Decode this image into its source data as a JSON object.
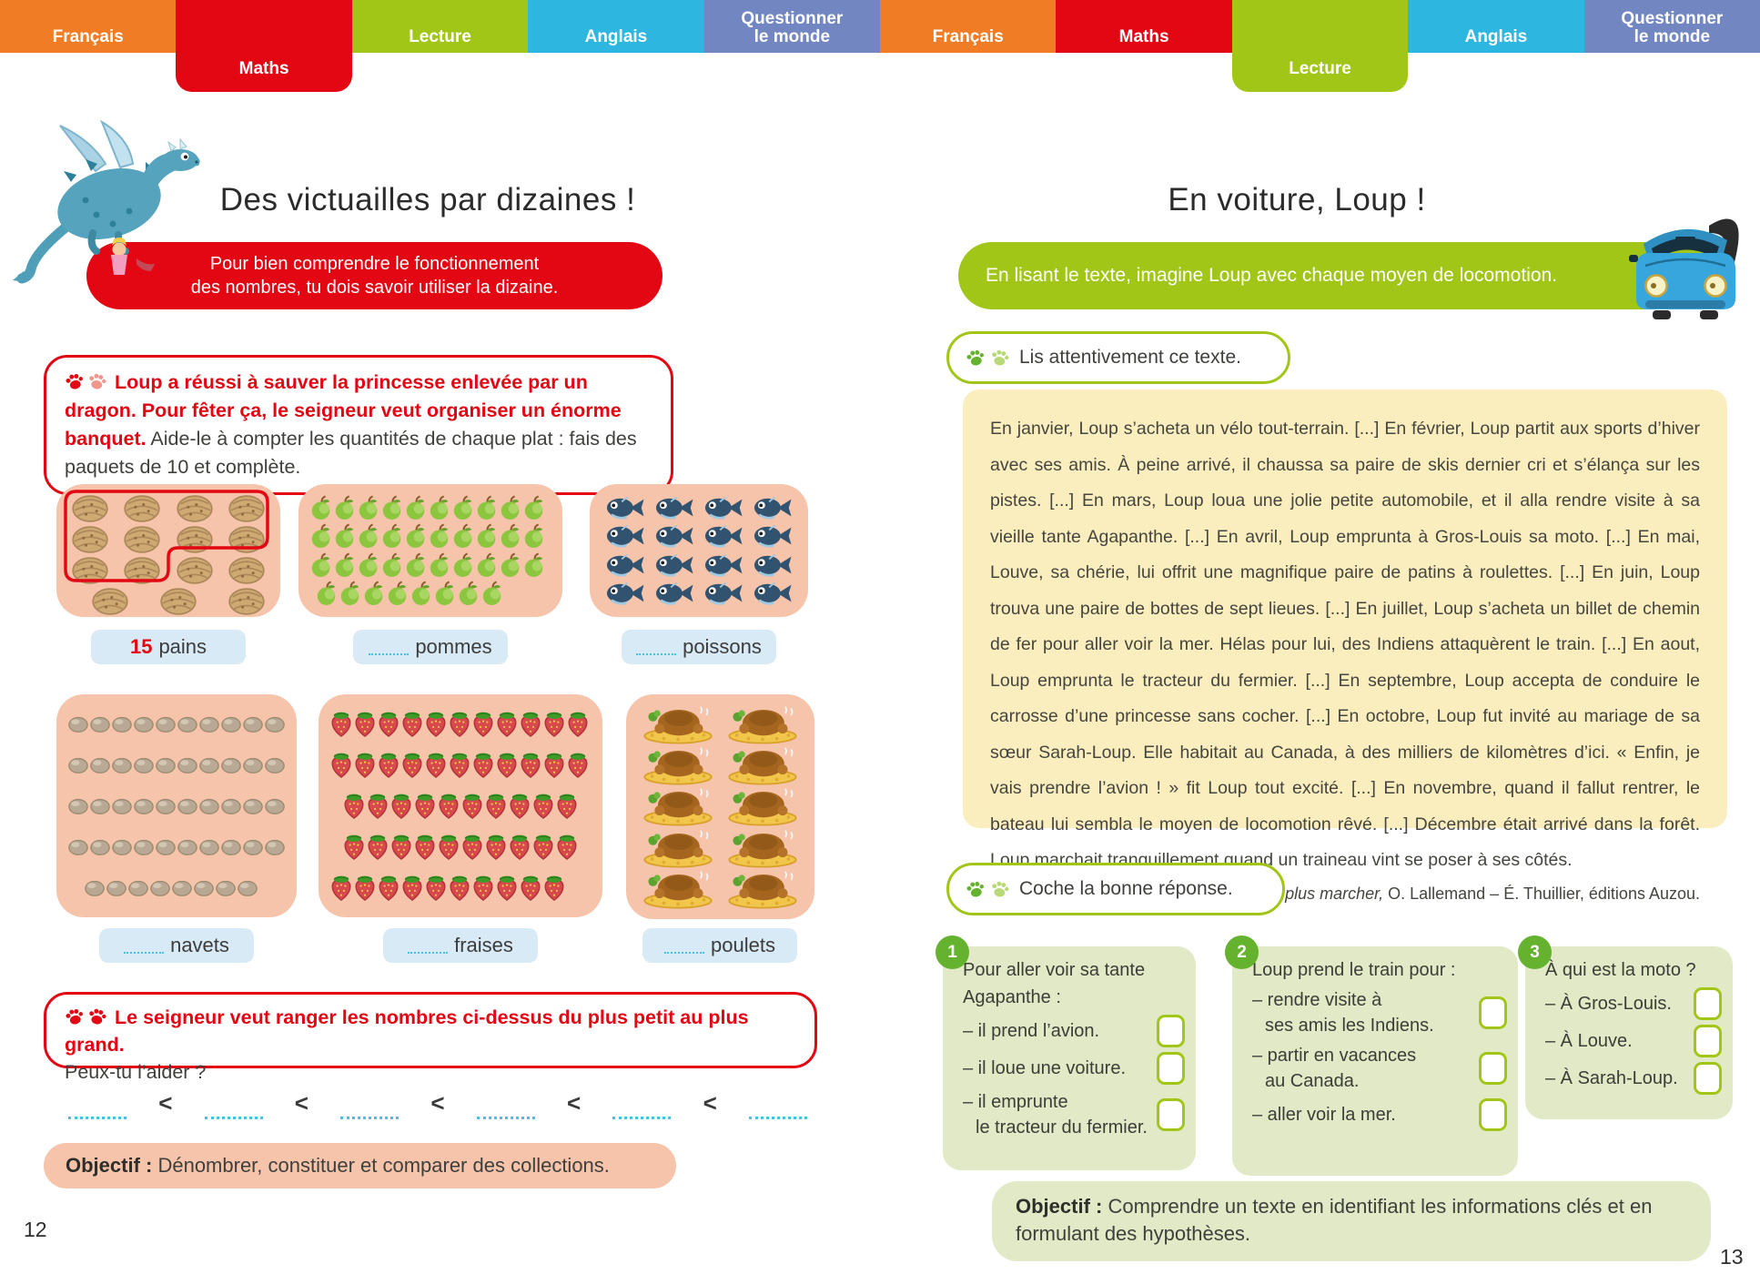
{
  "palette": {
    "orange": "#f07d26",
    "red": "#e30613",
    "green": "#a2c617",
    "cyan": "#2cb6e0",
    "blue": "#7287c2",
    "pink_box": "#f6c4ab",
    "label_blue": "#d8eaf6",
    "yellow_box": "#fbeebe",
    "card_green": "#e1e9c6",
    "circle_green": "#65b22e",
    "dotted_cyan": "#49bfe8"
  },
  "left_page": {
    "tabs": [
      {
        "label": "Français",
        "color": "#f07d26",
        "active": false
      },
      {
        "label": "Maths",
        "color": "#e30613",
        "active": true
      },
      {
        "label": "Lecture",
        "color": "#a2c617",
        "active": false
      },
      {
        "label": "Anglais",
        "color": "#2cb6e0",
        "active": false
      },
      {
        "label": "Questionner\nle monde",
        "color": "#7287c2",
        "active": false
      }
    ],
    "title": "Des victuailles par dizaines !",
    "banner_lines": [
      "Pour bien comprendre le fonctionnement",
      "des nombres, tu dois savoir utiliser la dizaine."
    ],
    "exercise1_red": "Loup a réussi à sauver la princesse enlevée par un dragon. Pour fêter ça, le seigneur veut organiser un énorme banquet.",
    "exercise1_dark": " Aide-le à compter les quantités de chaque plat : fais des paquets de 10 et complète.",
    "collections": [
      {
        "id": "pains",
        "item": "bread",
        "rows": [
          {
            "count": 4,
            "indent": 0
          },
          {
            "count": 4,
            "indent": 0
          },
          {
            "count": 4,
            "indent": 0
          },
          {
            "count": 3,
            "indent": 22
          }
        ],
        "label_value": "15",
        "label_word": "pains",
        "grouped_by_ten": true
      },
      {
        "id": "pommes",
        "item": "apple",
        "rows": [
          {
            "count": 10,
            "indent": 0
          },
          {
            "count": 10,
            "indent": 0
          },
          {
            "count": 10,
            "indent": 0
          },
          {
            "count": 8,
            "indent": 6
          }
        ],
        "label_value": "",
        "label_word": "pommes"
      },
      {
        "id": "poissons",
        "item": "fish",
        "rows": [
          {
            "count": 4,
            "indent": 0
          },
          {
            "count": 4,
            "indent": 0
          },
          {
            "count": 4,
            "indent": 0
          },
          {
            "count": 4,
            "indent": 0
          }
        ],
        "label_value": "",
        "label_word": "poissons"
      },
      {
        "id": "navets",
        "item": "turnip",
        "rows": [
          {
            "count": 10,
            "indent": 0
          },
          {
            "count": 10,
            "indent": 0
          },
          {
            "count": 10,
            "indent": 0
          },
          {
            "count": 10,
            "indent": 0
          },
          {
            "count": 8,
            "indent": 18
          }
        ],
        "label_value": "",
        "label_word": "navets"
      },
      {
        "id": "fraises",
        "item": "strawberry",
        "rows": [
          {
            "count": 11,
            "indent": 0
          },
          {
            "count": 11,
            "indent": 0
          },
          {
            "count": 10,
            "indent": 14
          },
          {
            "count": 10,
            "indent": 14
          },
          {
            "count": 10,
            "indent": 0
          }
        ],
        "label_value": "",
        "label_word": "fraises"
      },
      {
        "id": "poulets",
        "item": "chicken",
        "rows": [
          {
            "count": 2,
            "indent": 0
          },
          {
            "count": 2,
            "indent": 0
          },
          {
            "count": 2,
            "indent": 0
          },
          {
            "count": 2,
            "indent": 0
          },
          {
            "count": 2,
            "indent": 0
          }
        ],
        "label_value": "",
        "label_word": "poulets"
      }
    ],
    "exercise2_red": "Le seigneur veut ranger les nombres ci-dessus du plus petit au plus grand.",
    "exercise2_dark": "Peux-tu l’aider ?",
    "comparison": {
      "blanks": 6,
      "separator": "<"
    },
    "objective_label": "Objectif :",
    "objective_text": " Dénombrer, constituer et comparer des collections.",
    "page_number": "12"
  },
  "right_page": {
    "tabs": [
      {
        "label": "Français",
        "color": "#f07d26",
        "active": false
      },
      {
        "label": "Maths",
        "color": "#e30613",
        "active": false
      },
      {
        "label": "Lecture",
        "color": "#a2c617",
        "active": true
      },
      {
        "label": "Anglais",
        "color": "#2cb6e0",
        "active": false
      },
      {
        "label": "Questionner\nle monde",
        "color": "#7287c2",
        "active": false
      }
    ],
    "title": "En voiture, Loup !",
    "banner": "En lisant le texte, imagine Loup avec chaque moyen de locomotion.",
    "read_instruction": "Lis attentivement ce texte.",
    "passage": "En janvier, Loup s’acheta un vélo tout-terrain. [...] En février, Loup partit aux sports d’hiver avec ses amis. À peine arrivé, il chaussa sa paire de skis dernier cri et s’élança sur les pistes. [...] En mars, Loup loua une jolie petite automobile, et il alla rendre visite à sa vieille tante Agapanthe. [...] En avril, Loup emprunta à Gros-Louis sa moto. [...] En mai, Louve, sa chérie, lui offrit une magnifique paire de patins à roulettes. [...] En juin, Loup trouva une paire de bottes de sept lieues. [...] En juillet, Loup s’acheta un billet de chemin de fer pour aller voir la mer. Hélas pour lui, des Indiens attaquèrent le train. [...] En aout, Loup emprunta le tracteur du fermier. [...] En septembre, Loup accepta de conduire le carrosse d’une princesse sans cocher. [...] En octobre, Loup fut invité au mariage de sa sœur Sarah-Loup. Elle habitait au Canada, à des milliers de kilomètres d’ici. « Enfin, je vais prendre l’avion ! » fit Loup tout excité. [...] En novembre, quand il fallut rentrer, le bateau lui sembla le moyen de locomotion rêvé. [...] Décembre était arrivé dans la forêt. Loup marchait tranquillement quand un traineau vint se poser à ses côtés.",
    "attribution_title": "Le loup qui ne voulait plus marcher,",
    "attribution_rest": " O. Lallemand – É. Thuillier, éditions Auzou.",
    "check_instruction": "Coche la bonne réponse.",
    "questions": [
      {
        "number": "1",
        "intro_lines": [
          "Pour aller voir sa tante",
          "Agapanthe :"
        ],
        "options": [
          {
            "lines": [
              "– il prend l’avion."
            ]
          },
          {
            "lines": [
              "– il loue une voiture."
            ]
          },
          {
            "lines": [
              "– il emprunte",
              "le tracteur du fermier."
            ]
          }
        ]
      },
      {
        "number": "2",
        "intro_lines": [
          "Loup prend le train pour :"
        ],
        "options": [
          {
            "lines": [
              "– rendre visite à",
              "ses amis les Indiens."
            ]
          },
          {
            "lines": [
              "– partir en vacances",
              "au Canada."
            ]
          },
          {
            "lines": [
              "– aller voir la mer."
            ]
          }
        ]
      },
      {
        "number": "3",
        "intro_lines": [
          "À qui est la moto ?"
        ],
        "options": [
          {
            "lines": [
              "– À Gros-Louis."
            ]
          },
          {
            "lines": [
              "– À Louve."
            ]
          },
          {
            "lines": [
              "– À Sarah-Loup."
            ]
          }
        ]
      }
    ],
    "objective_label": "Objectif :",
    "objective_text": " Comprendre un texte en identifiant les informations clés et en formulant des hypothèses.",
    "page_number": "13"
  }
}
